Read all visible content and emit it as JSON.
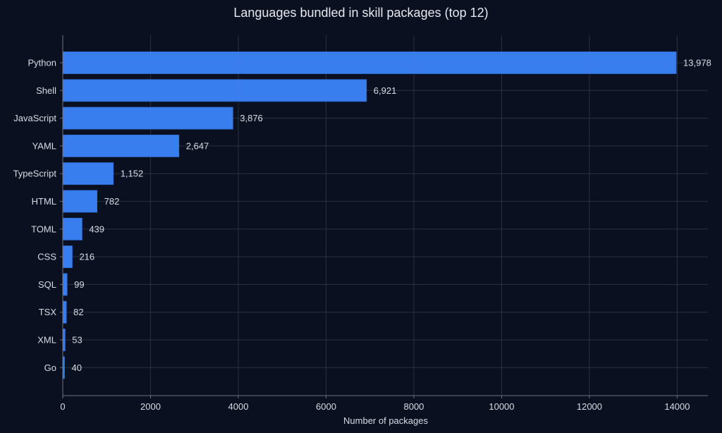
{
  "chart_data": {
    "type": "bar",
    "orientation": "horizontal",
    "title": "Languages bundled in skill packages (top 12)",
    "xlabel": "Number of packages",
    "ylabel": "",
    "categories": [
      "Python",
      "Shell",
      "JavaScript",
      "YAML",
      "TypeScript",
      "HTML",
      "TOML",
      "CSS",
      "SQL",
      "TSX",
      "XML",
      "Go"
    ],
    "values": [
      13978,
      6921,
      3876,
      2647,
      1152,
      782,
      439,
      216,
      99,
      82,
      53,
      40
    ],
    "value_labels": [
      "13,978",
      "6,921",
      "3,876",
      "2,647",
      "1,152",
      "782",
      "439",
      "216",
      "99",
      "82",
      "53",
      "40"
    ],
    "xlim": [
      0,
      14700
    ],
    "xticks": [
      0,
      2000,
      4000,
      6000,
      8000,
      10000,
      12000,
      14000
    ],
    "xtick_labels": [
      "0",
      "2000",
      "4000",
      "6000",
      "8000",
      "10000",
      "12000",
      "14000"
    ],
    "grid": true,
    "colors": {
      "background": "#0b1020",
      "bar": "#3b82f6",
      "bar_edge": "#2f6fd6",
      "grid": "#2a3040",
      "axis": "#6b7280",
      "text": "#d8dce6"
    }
  }
}
